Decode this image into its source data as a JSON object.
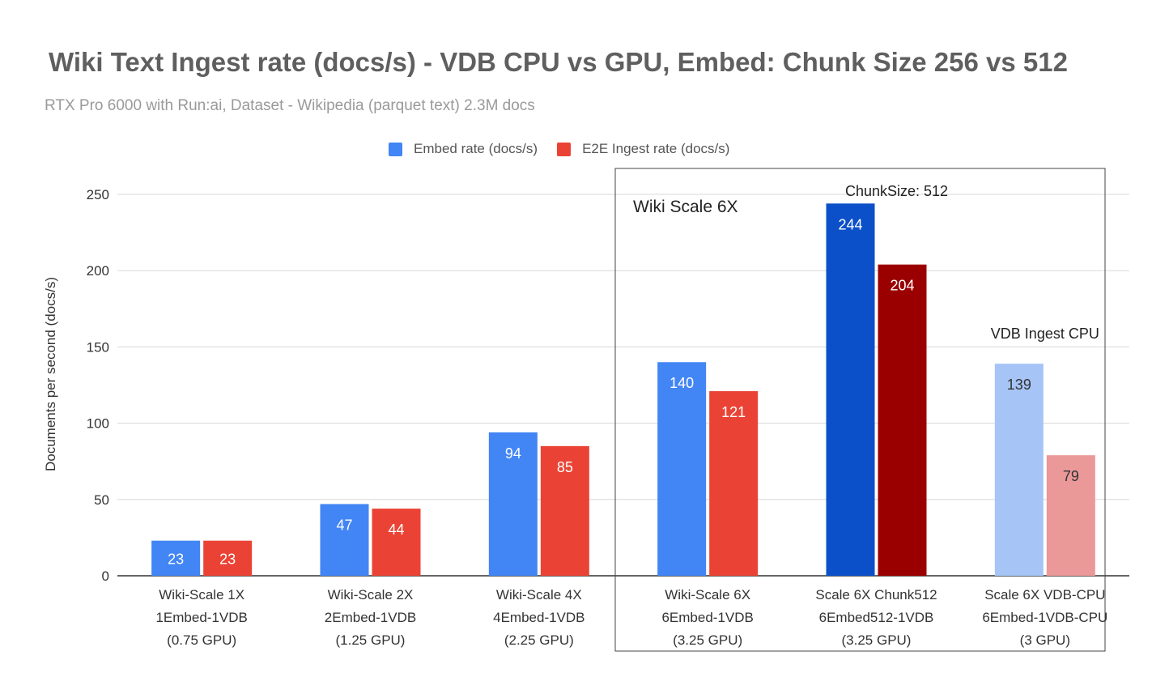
{
  "chart_data": {
    "type": "bar",
    "title": "Wiki Text Ingest rate (docs/s) - VDB CPU vs GPU, Embed: Chunk Size 256 vs 512",
    "subtitle": "RTX Pro 6000 with Run:ai, Dataset - Wikipedia (parquet text)  2.3M docs",
    "xlabel": "",
    "ylabel": "Documents per second (docs/s)",
    "ylim": [
      0,
      250
    ],
    "yticks": [
      0,
      50,
      100,
      150,
      200,
      250
    ],
    "grid": true,
    "legend_position": "top",
    "categories": [
      [
        "Wiki-Scale 1X",
        "1Embed-1VDB",
        "(0.75 GPU)"
      ],
      [
        "Wiki-Scale 2X",
        "2Embed-1VDB",
        "(1.25 GPU)"
      ],
      [
        "Wiki-Scale 4X",
        "4Embed-1VDB",
        "(2.25 GPU)"
      ],
      [
        "Wiki-Scale 6X",
        "6Embed-1VDB",
        "(3.25 GPU)"
      ],
      [
        "Scale 6X Chunk512",
        "6Embed512-1VDB",
        "(3.25 GPU)"
      ],
      [
        "Scale 6X VDB-CPU",
        "6Embed-1VDB-CPU",
        "(3 GPU)"
      ]
    ],
    "series": [
      {
        "name": "Embed rate (docs/s)",
        "color": "#4285f4",
        "values": [
          23,
          47,
          94,
          140,
          244,
          139
        ],
        "bar_colors": [
          "#4285f4",
          "#4285f4",
          "#4285f4",
          "#4285f4",
          "#0b50c8",
          "#a6c4f5"
        ],
        "label_colors": [
          "#ffffff",
          "#ffffff",
          "#ffffff",
          "#ffffff",
          "#ffffff",
          "#333333"
        ]
      },
      {
        "name": "E2E Ingest rate (docs/s)",
        "color": "#ea4335",
        "values": [
          23,
          44,
          85,
          121,
          204,
          79
        ],
        "bar_colors": [
          "#ea4335",
          "#ea4335",
          "#ea4335",
          "#ea4335",
          "#9b0000",
          "#ea9898"
        ],
        "label_colors": [
          "#ffffff",
          "#ffffff",
          "#ffffff",
          "#ffffff",
          "#ffffff",
          "#333333"
        ]
      }
    ],
    "annotations": {
      "group_box_label": "Wiki Scale 6X",
      "chunk_label": "ChunkSize: 512",
      "cpu_label": "VDB Ingest CPU"
    }
  }
}
